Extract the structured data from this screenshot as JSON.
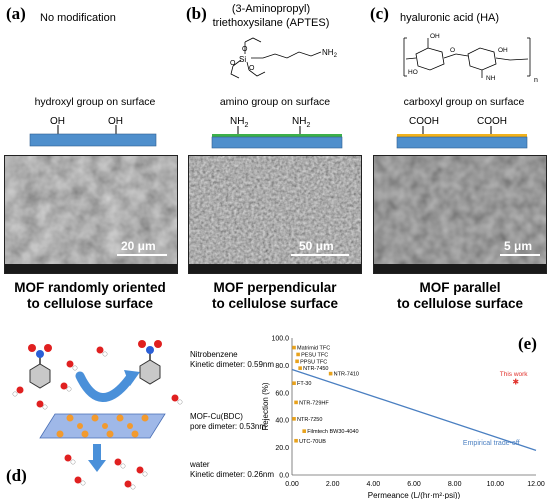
{
  "panels": {
    "a": {
      "label": "(a)",
      "title": "No modification",
      "surface": "hydroxyl group on surface",
      "groups": [
        "OH",
        "OH"
      ],
      "bar_color": "#4f8fcc",
      "scale": "20 μm",
      "caption_line1": "MOF randomly oriented",
      "caption_line2": "to cellulose surface"
    },
    "b": {
      "label": "(b)",
      "title_line1": "(3-Aminopropyl)",
      "title_line2": "triethoxysilane (APTES)",
      "molecule_labels": {
        "si": "Si",
        "o": "O",
        "nh2": "NH",
        "nh2_sub": "2"
      },
      "surface": "amino group on surface",
      "group_text": "NH",
      "group_sub": "2",
      "bar_color": "#4f8fcc",
      "coating_color": "#3cb04a",
      "scale": "50 μm",
      "caption_line1": "MOF perpendicular",
      "caption_line2": "to cellulose surface"
    },
    "c": {
      "label": "(c)",
      "title": "hyaluronic acid (HA)",
      "molecule_labels": {
        "n": "n",
        "oh": "OH",
        "ho": "HO",
        "o": "O",
        "nh": "NH"
      },
      "surface": "carboxyl group on surface",
      "groups": [
        "COOH",
        "COOH"
      ],
      "bar_color": "#4f8fcc",
      "coating_color": "#f2b21b",
      "scale": "5 μm",
      "caption_line1": "MOF parallel",
      "caption_line2": "to cellulose surface"
    },
    "d": {
      "label": "(d)",
      "nitro_title": "Nitrobenzene",
      "nitro_dim": "Kinetic dimeter: 0.59nm",
      "mof_title": "MOF-Cu(BDC)",
      "mof_dim": "pore dimeter: 0.53nm",
      "water_title": "water",
      "water_dim": "Kinetic dimeter: 0.26nm"
    },
    "e": {
      "label": "(e)"
    }
  },
  "chart_data": {
    "type": "scatter",
    "xlabel": "Permeance (L/(hr·m²·psi))",
    "ylabel": "Rejection (%)",
    "xlim": [
      0,
      12
    ],
    "ylim": [
      0,
      100
    ],
    "xticks": [
      "0.00",
      "2.00",
      "4.00",
      "6.00",
      "8.00",
      "10.00",
      "12.00"
    ],
    "yticks": [
      "0.0",
      "20.0",
      "40.0",
      "60.0",
      "80.0",
      "100.0"
    ],
    "trend": {
      "name": "Empirical trade-off",
      "x": [
        0,
        12
      ],
      "y": [
        77,
        18
      ],
      "color": "#4a7fc1"
    },
    "points": [
      {
        "label": "Matrimid TFC",
        "x": 0.1,
        "y": 93
      },
      {
        "label": "PESU TFC",
        "x": 0.3,
        "y": 88
      },
      {
        "label": "PPSU TFC",
        "x": 0.25,
        "y": 83
      },
      {
        "label": "NTR-7450",
        "x": 0.4,
        "y": 78
      },
      {
        "label": "NTR-7410",
        "x": 1.9,
        "y": 74
      },
      {
        "label": "FT-30",
        "x": 0.1,
        "y": 67
      },
      {
        "label": "NTR-729HF",
        "x": 0.2,
        "y": 53
      },
      {
        "label": "NTR-7250",
        "x": 0.1,
        "y": 41
      },
      {
        "label": "Filmtech BW30-4040",
        "x": 0.6,
        "y": 32
      },
      {
        "label": "UTC-70UB",
        "x": 0.2,
        "y": 25
      }
    ],
    "this_work": {
      "label": "This work",
      "x": 11.0,
      "y": 68,
      "color": "#e0302a"
    },
    "point_color": "#e8a21c"
  }
}
